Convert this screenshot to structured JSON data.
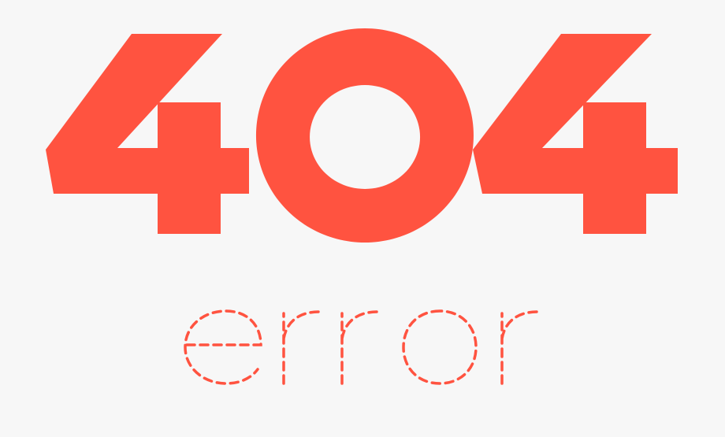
{
  "code": "404",
  "word": "error",
  "colors": {
    "background": "#f7f7f7",
    "accent": "#ff5340"
  }
}
